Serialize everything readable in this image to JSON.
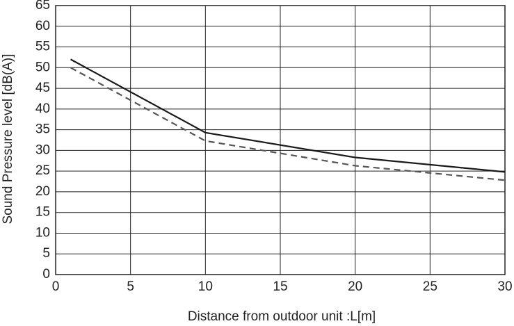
{
  "chart_data": {
    "type": "line",
    "xlabel": "Distance from outdoor unit  :L[m]",
    "ylabel": "Sound Pressure level [dB(A)]",
    "x": [
      1,
      10,
      20,
      30
    ],
    "series": [
      {
        "color": "#1a1a1a",
        "dashed": false,
        "values": [
          52,
          34.3,
          28.3,
          24.8
        ]
      },
      {
        "color": "#555555",
        "dashed": true,
        "values": [
          50,
          32.3,
          26.3,
          22.8
        ]
      }
    ],
    "xlim": [
      0,
      30
    ],
    "xticks": [
      0,
      5,
      10,
      15,
      20,
      25,
      30
    ],
    "ylim": [
      0,
      65
    ],
    "yticks": [
      0,
      5,
      10,
      15,
      20,
      25,
      30,
      35,
      40,
      45,
      50,
      55,
      60,
      65
    ],
    "grid": true
  }
}
